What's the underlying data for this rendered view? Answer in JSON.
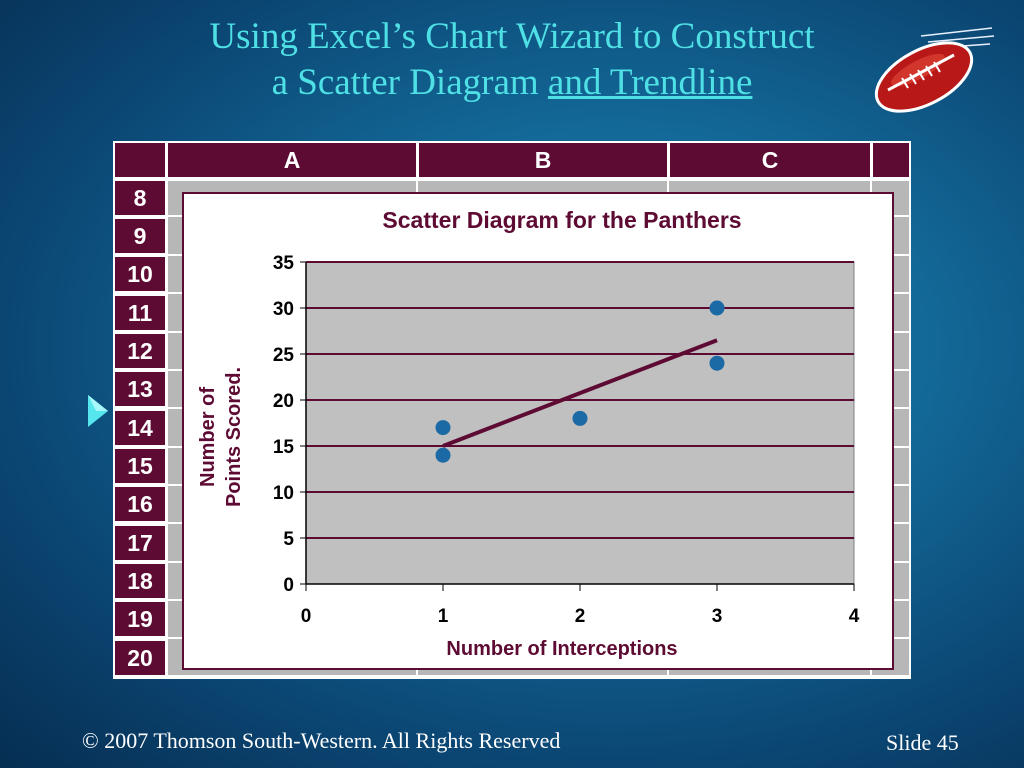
{
  "slide": {
    "title_line1": "Using Excel’s Chart Wizard to Construct",
    "title_line2_plain": "a Scatter Diagram ",
    "title_line2_underlined": "and Trendline",
    "footer_copyright": "© 2007  Thomson South-Western.  All Rights Reserved",
    "footer_slide": "Slide 45",
    "accent_color": "#4fe0e6",
    "sheet_header_color": "#5e0b34"
  },
  "sheet": {
    "columns": [
      "A",
      "B",
      "C"
    ],
    "rows": [
      "8",
      "9",
      "10",
      "11",
      "12",
      "13",
      "14",
      "15",
      "16",
      "17",
      "18",
      "19",
      "20"
    ]
  },
  "chart_data": {
    "type": "scatter",
    "title": "Scatter Diagram for the Panthers",
    "xlabel": "Number of Interceptions",
    "ylabel_line1": "Number of",
    "ylabel_line2": "Points Scored.",
    "xlim": [
      0,
      4
    ],
    "ylim": [
      0,
      35
    ],
    "x_ticks": [
      0,
      1,
      2,
      3,
      4
    ],
    "y_ticks": [
      0,
      5,
      10,
      15,
      20,
      25,
      30,
      35
    ],
    "grid": true,
    "points": [
      {
        "x": 1,
        "y": 17
      },
      {
        "x": 1,
        "y": 14
      },
      {
        "x": 2,
        "y": 18
      },
      {
        "x": 3,
        "y": 30
      },
      {
        "x": 3,
        "y": 24
      }
    ],
    "trendline": {
      "x_start": 1,
      "y_start": 15,
      "x_end": 3,
      "y_end": 26.5
    },
    "point_color": "#1b6aa5",
    "line_color": "#5e0b34",
    "plot_bg": "#c0c0c0"
  }
}
